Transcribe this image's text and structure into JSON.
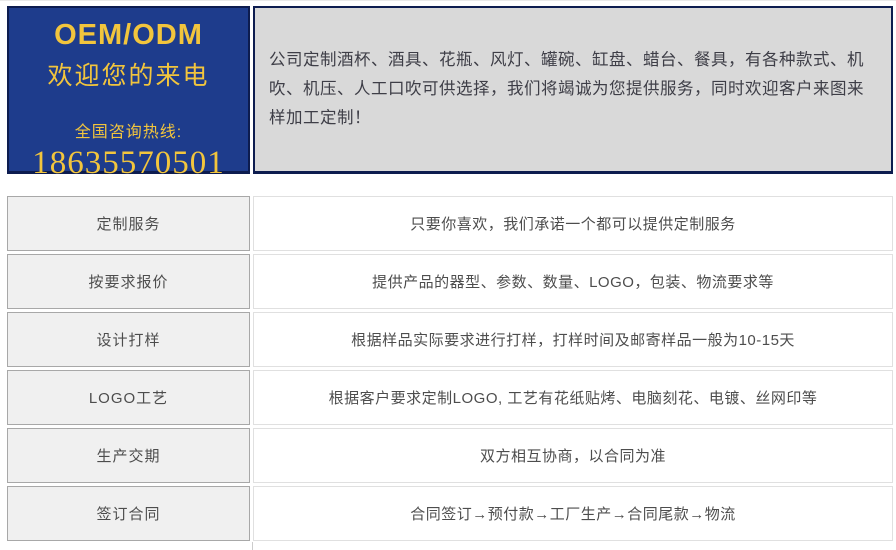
{
  "banner": {
    "title_line1": "OEM/ODM",
    "title_line2": "欢迎您的来电",
    "hotline_label": "全国咨询热线:",
    "phone": "18635570501",
    "description": "公司定制酒杯、酒具、花瓶、风灯、罐碗、缸盘、蜡台、餐具，有各种款式、机吹、机压、人工口吹可供选择，我们将竭诚为您提供服务，同时欢迎客户来图来样加工定制！"
  },
  "colors": {
    "banner_blue": "#1e3c8c",
    "banner_border_navy": "#0d1c4f",
    "banner_yellow": "#f2c53d",
    "description_panel_gray": "#d9d9d9",
    "label_cell_gray": "#f0f0f0",
    "text_gray": "#4d4d4d"
  },
  "service_table": {
    "rows": [
      {
        "label": "定制服务",
        "detail": "只要你喜欢，我们承诺一个都可以提供定制服务"
      },
      {
        "label": "按要求报价",
        "detail": "提供产品的器型、参数、数量、LOGO，包装、物流要求等"
      },
      {
        "label": "设计打样",
        "detail": "根据样品实际要求进行打样，打样时间及邮寄样品一般为10-15天"
      },
      {
        "label": "LOGO工艺",
        "detail": "根据客户要求定制LOGO, 工艺有花纸贴烤、电脑刻花、电镀、丝网印等"
      },
      {
        "label": "生产交期",
        "detail": "双方相互协商，以合同为准"
      },
      {
        "label": "签订合同",
        "detail": "合同签订→预付款→工厂生产→合同尾款→物流"
      }
    ]
  }
}
